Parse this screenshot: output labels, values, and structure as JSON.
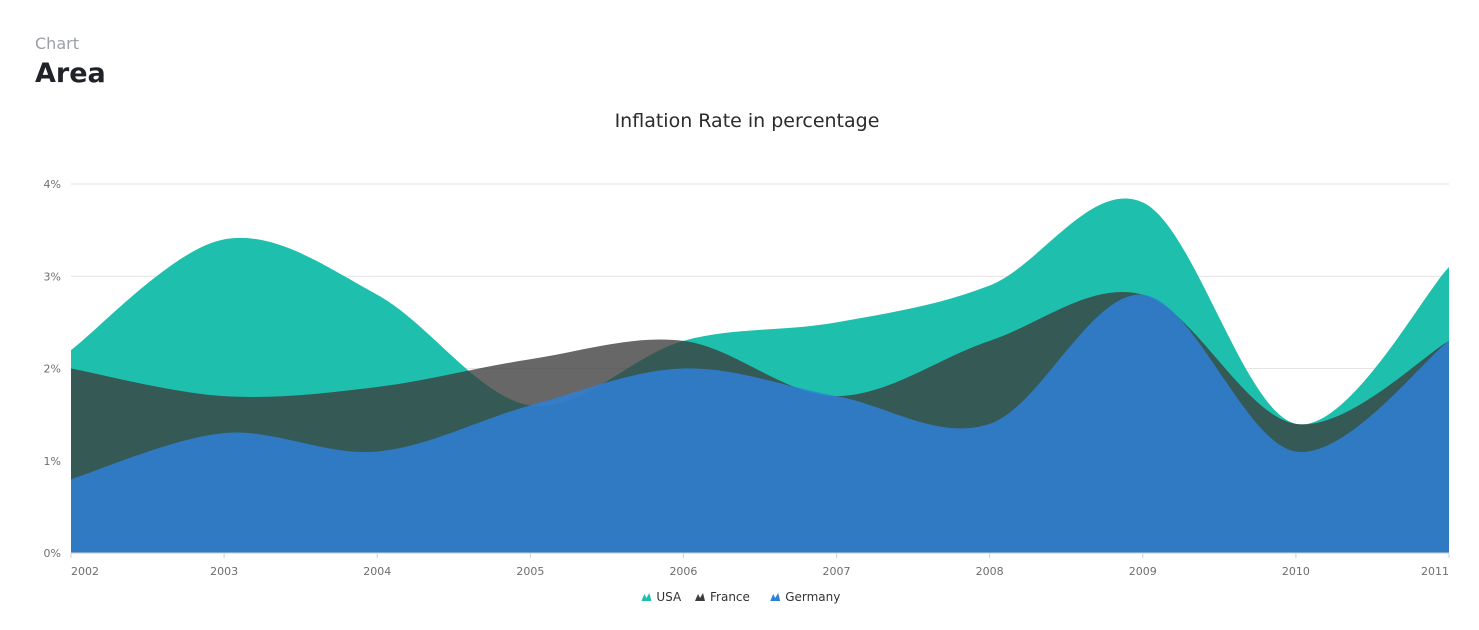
{
  "header": {
    "breadcrumb": "Chart",
    "title": "Area"
  },
  "chart_data": {
    "type": "area",
    "title": "Inflation Rate in percentage",
    "xlabel": "",
    "ylabel": "",
    "categories": [
      "2002",
      "2003",
      "2004",
      "2005",
      "2006",
      "2007",
      "2008",
      "2009",
      "2010",
      "2011"
    ],
    "y_ticks": [
      "0%",
      "1%",
      "2%",
      "3%",
      "4%"
    ],
    "ylim": [
      0,
      4
    ],
    "grid": true,
    "legend_position": "bottom-center",
    "series": [
      {
        "name": "USA",
        "color": "#1ec0ad",
        "values": [
          2.2,
          3.4,
          2.8,
          1.6,
          2.3,
          2.5,
          2.9,
          3.8,
          1.4,
          3.1
        ]
      },
      {
        "name": "France",
        "color": "#3c3c3c",
        "values": [
          2.0,
          1.7,
          1.8,
          2.1,
          2.3,
          1.7,
          2.3,
          2.8,
          1.4,
          2.3
        ]
      },
      {
        "name": "Germany",
        "color": "#2f80d8",
        "values": [
          0.8,
          1.3,
          1.1,
          1.6,
          2.0,
          1.7,
          1.4,
          2.8,
          1.1,
          2.3
        ]
      }
    ]
  }
}
